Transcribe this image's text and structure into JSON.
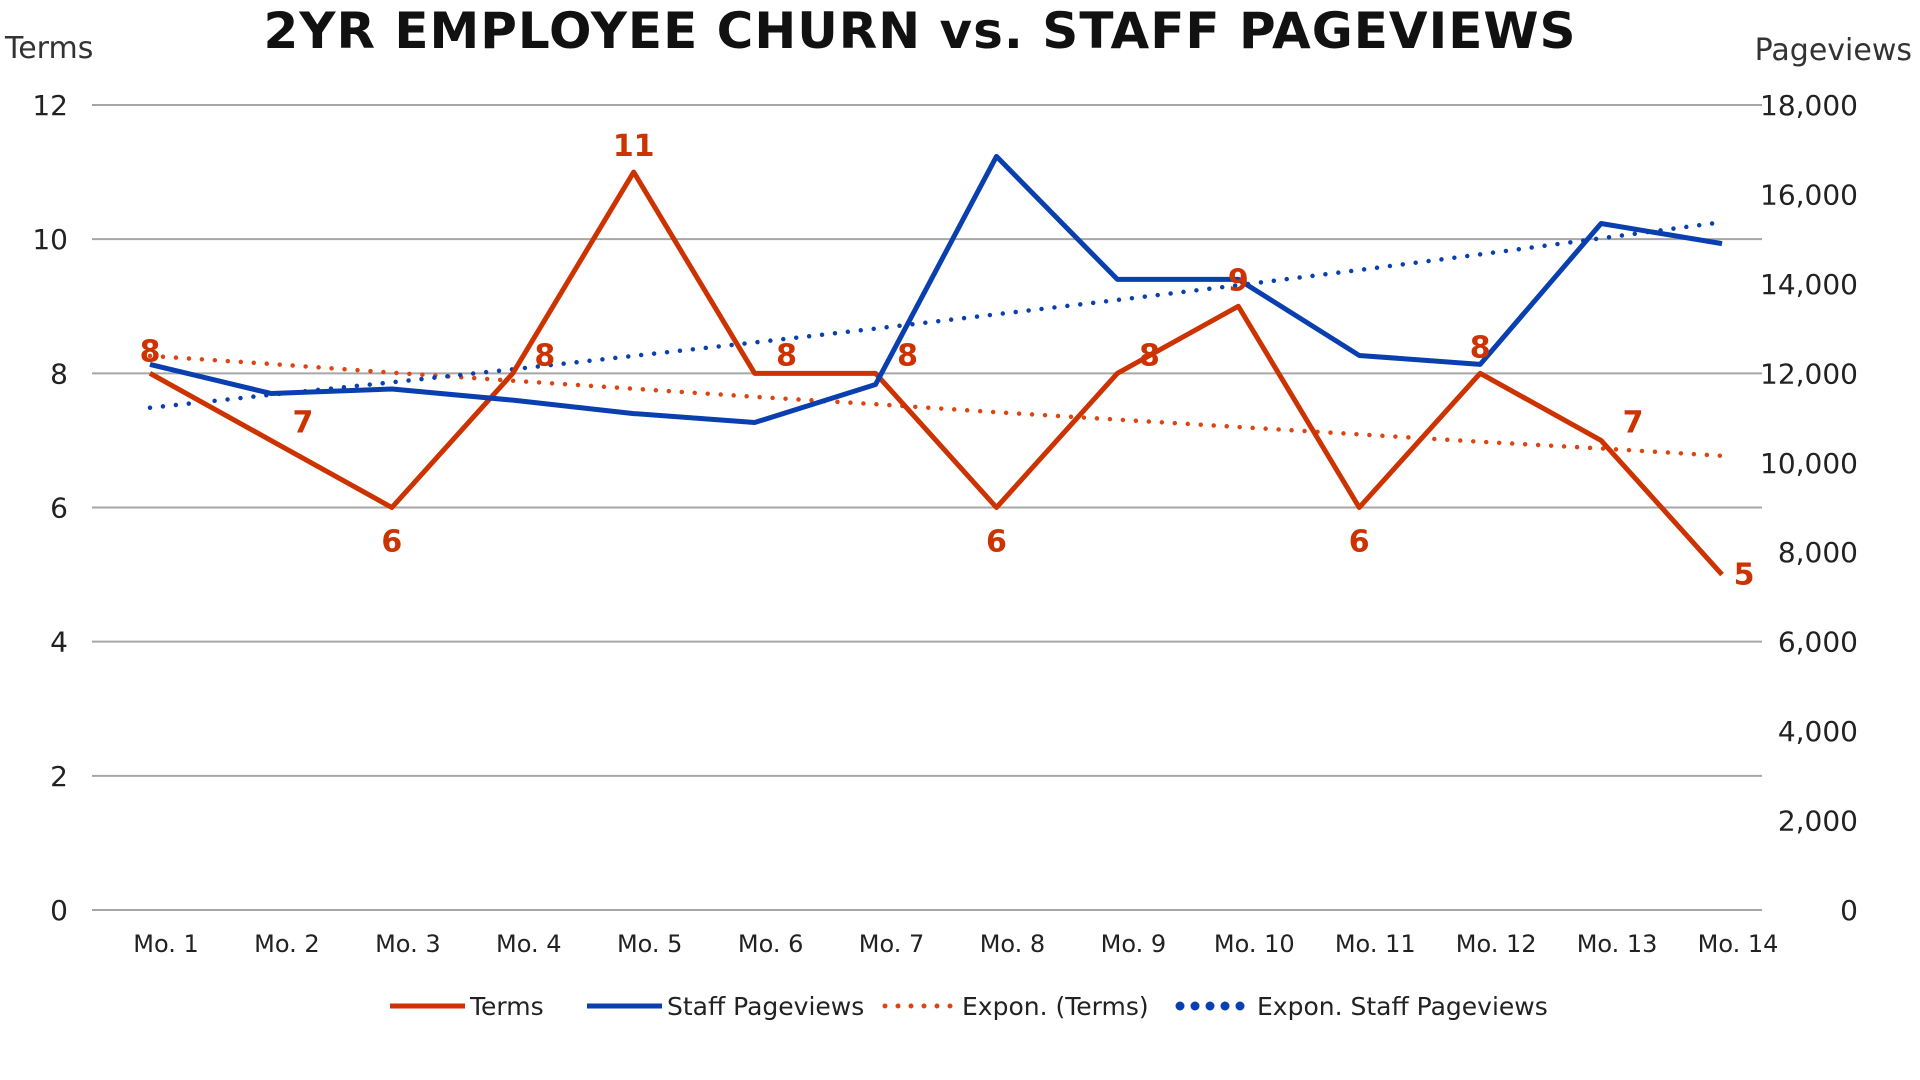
{
  "chart_data": {
    "type": "line",
    "title": "2YR EMPLOYEE CHURN vs. STAFF PAGEVIEWS",
    "ylabel_left": "Terms",
    "ylabel_right": "Pageviews",
    "categories": [
      "Mo. 1",
      "Mo. 2",
      "Mo. 3",
      "Mo. 4",
      "Mo. 5",
      "Mo. 6",
      "Mo. 7",
      "Mo. 8",
      "Mo. 9",
      "Mo. 10",
      "Mo. 11",
      "Mo. 12",
      "Mo. 13",
      "Mo. 14"
    ],
    "ylim_left": [
      0,
      12
    ],
    "ylim_right": [
      0,
      18000
    ],
    "yticks_left": [
      "0",
      "2",
      "4",
      "6",
      "8",
      "10",
      "12"
    ],
    "yticks_right": [
      "0",
      "2,000",
      "4,000",
      "6,000",
      "8,000",
      "10,000",
      "12,000",
      "14,000",
      "16,000",
      "18,000"
    ],
    "grid": true,
    "legend_position": "bottom",
    "series": [
      {
        "name": "Terms",
        "axis": "left",
        "style": "solid",
        "color": "#cc3300",
        "values": [
          8,
          7,
          6,
          8,
          11,
          8,
          8,
          6,
          8,
          9,
          6,
          8,
          7,
          5
        ],
        "data_labels": [
          "8",
          "7",
          "6",
          "8",
          "11",
          "8",
          "8",
          "6",
          "8",
          "9",
          "6",
          "8",
          "7",
          "5"
        ]
      },
      {
        "name": "Staff Pageviews",
        "axis": "right",
        "style": "solid",
        "color": "#0a3fb0",
        "values": [
          12200,
          11550,
          11650,
          11400,
          11100,
          10900,
          11750,
          16850,
          14100,
          14100,
          12400,
          12200,
          15350,
          14900
        ]
      },
      {
        "name": "Expon. (Terms)",
        "axis": "left",
        "style": "dotted",
        "color": "#dd4411",
        "values": [
          8.26,
          8.14,
          8.01,
          7.89,
          7.77,
          7.65,
          7.54,
          7.42,
          7.31,
          7.2,
          7.09,
          6.98,
          6.88,
          6.77
        ]
      },
      {
        "name": "Expon. Staff Pageviews",
        "axis": "right",
        "style": "dotted",
        "color": "#0a3fb0",
        "values": [
          11230,
          11520,
          11800,
          12090,
          12390,
          12690,
          13000,
          13320,
          13640,
          13970,
          14310,
          14660,
          15020,
          15380
        ]
      }
    ]
  }
}
